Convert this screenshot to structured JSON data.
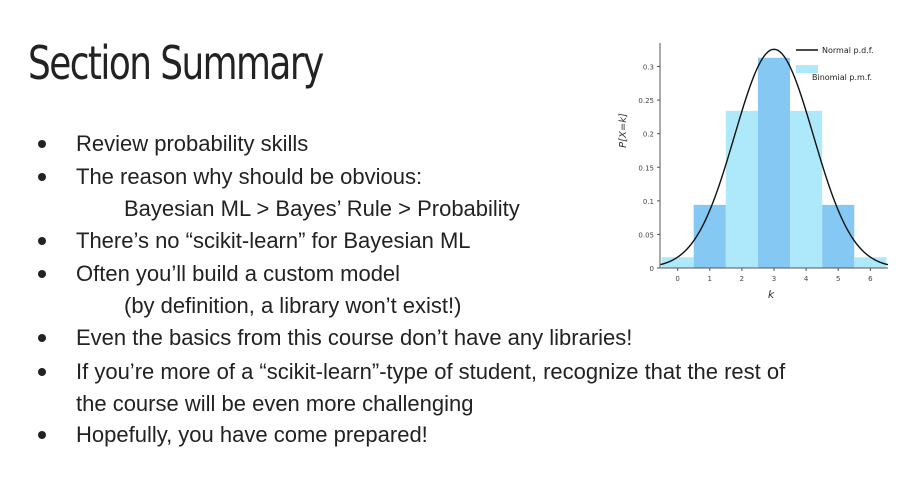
{
  "slide": {
    "title": "Section Summary",
    "bullets": [
      {
        "text": "Review probability skills"
      },
      {
        "text": "The reason why should be obvious:",
        "sub": "Bayesian ML > Bayes’ Rule > Probability"
      },
      {
        "text": "There’s no “scikit-learn” for Bayesian ML"
      },
      {
        "text": "Often you’ll build a custom model",
        "sub": "(by definition, a library won’t exist!)"
      },
      {
        "text": "Even the basics from this course don’t have any libraries!"
      },
      {
        "text": "If you’re more of a “scikit-learn”-type of student, recognize that the rest of",
        "cont": "the course will be even more challenging"
      },
      {
        "text": "Hopefully, you have come prepared!"
      }
    ]
  },
  "chart_data": {
    "type": "bar",
    "x": [
      0,
      1,
      2,
      3,
      4,
      5,
      6
    ],
    "series": [
      {
        "name": "Binomial p.m.f.",
        "values": [
          0.016,
          0.094,
          0.234,
          0.313,
          0.234,
          0.094,
          0.016
        ],
        "colors": [
          "#aee9fb",
          "#84c8f3"
        ]
      },
      {
        "name": "Normal p.d.f.",
        "type": "line",
        "mean": 3,
        "sd": 1.225,
        "color": "#111111"
      }
    ],
    "xlabel": "k",
    "ylabel": "P[X=k]",
    "xticks": [
      "0",
      "1",
      "2",
      "3",
      "4",
      "5",
      "6"
    ],
    "yticks": [
      "0",
      "0.05",
      "0.1",
      "0.15",
      "0.2",
      "0.25",
      "0.3"
    ],
    "xlim": [
      -0.55,
      6.55
    ],
    "ylim": [
      0,
      0.335
    ],
    "legend_position": "top-right",
    "grid": false
  }
}
